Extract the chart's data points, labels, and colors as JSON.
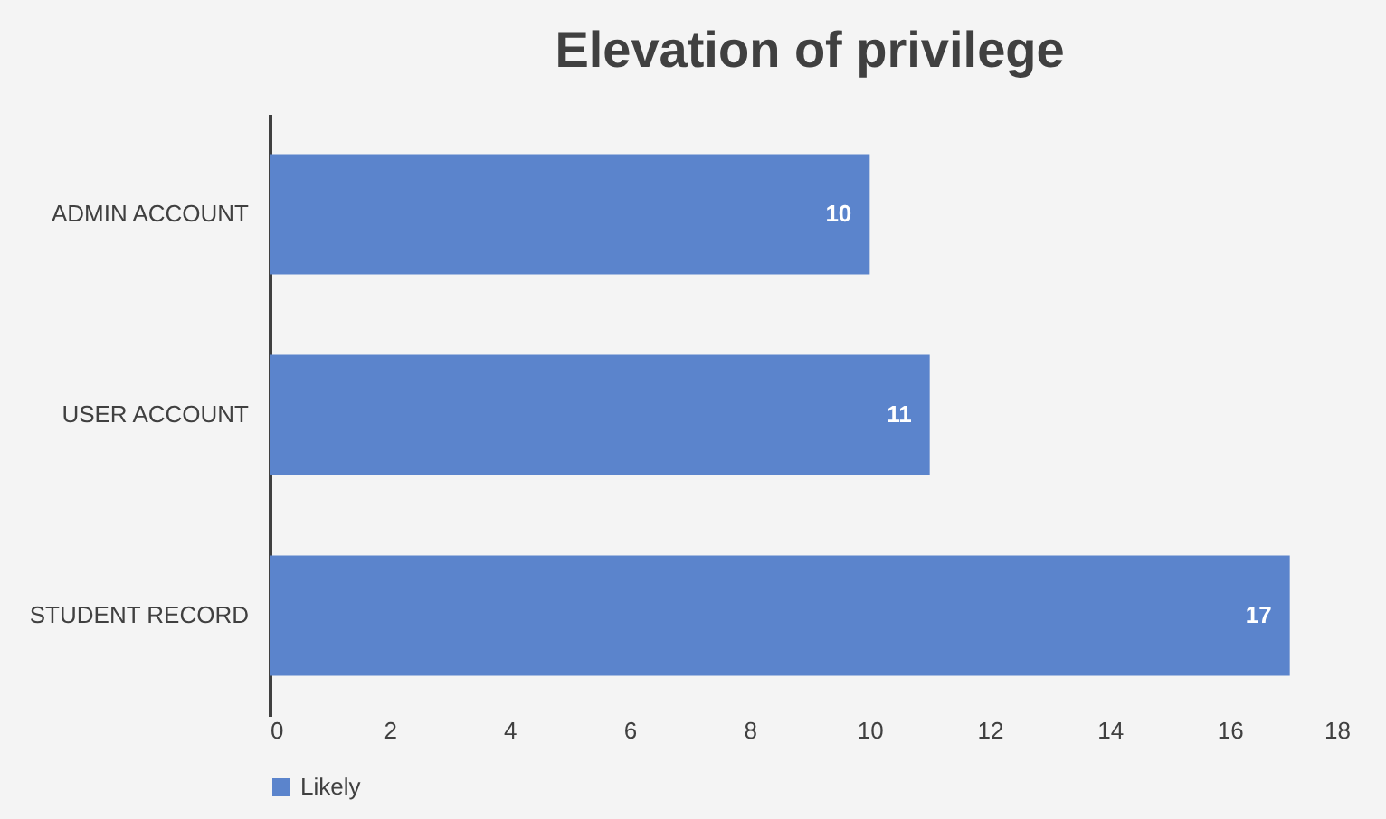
{
  "chart_data": {
    "type": "bar",
    "title": "Elevation of privilege",
    "orientation": "horizontal",
    "categories": [
      "ADMIN ACCOUNT",
      "USER ACCOUNT",
      "STUDENT RECORD"
    ],
    "series": [
      {
        "name": "Likely",
        "color": "#5b84cc",
        "values": [
          10,
          11,
          17
        ]
      }
    ],
    "xlim": [
      0,
      18
    ],
    "xticks": [
      0,
      2,
      4,
      6,
      8,
      10,
      12,
      14,
      16,
      18
    ],
    "grid": false,
    "legend": "bottom",
    "data_labels": true
  }
}
